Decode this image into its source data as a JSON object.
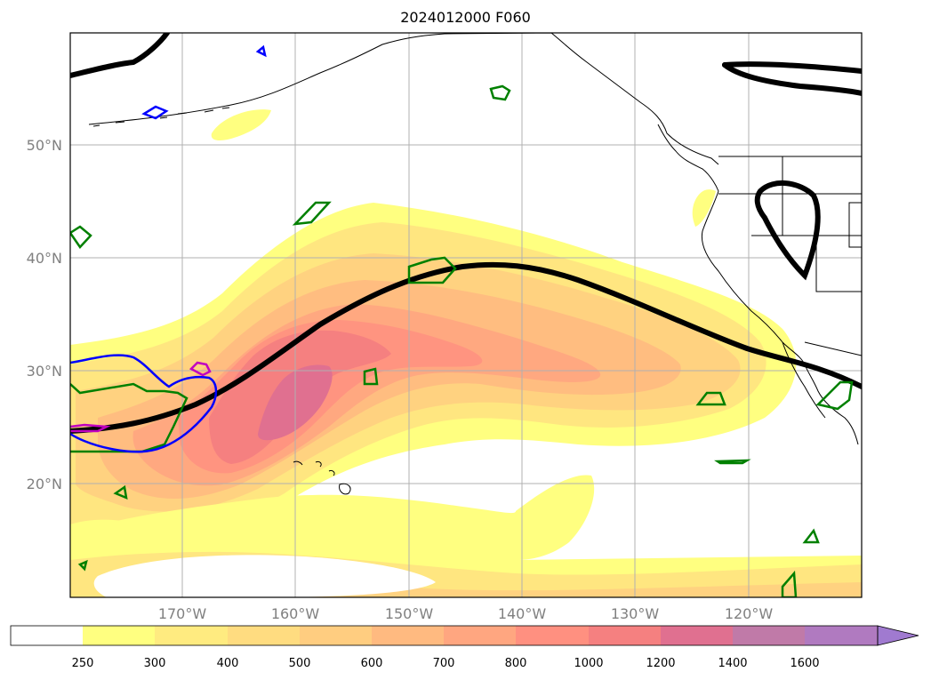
{
  "title": "2024012000 F060",
  "map": {
    "lat_ticks": [
      "50°N",
      "40°N",
      "30°N",
      "20°N"
    ],
    "lon_ticks": [
      "170°W",
      "160°W",
      "150°W",
      "140°W",
      "130°W",
      "120°W"
    ],
    "fill_colors": [
      "#ffff80",
      "#ffe680",
      "#ffd280",
      "#ffbd80",
      "#ffa880",
      "#ff9480",
      "#f58080",
      "#e07090",
      "#c080b0",
      "#a880d0"
    ],
    "jet_color": "#000000",
    "contour_green": "#008000",
    "contour_blue": "#0000ff",
    "contour_magenta": "#c000c0"
  },
  "colorbar": {
    "ticks": [
      "250",
      "300",
      "400",
      "500",
      "600",
      "700",
      "800",
      "1000",
      "1200",
      "1400",
      "1600"
    ],
    "colors": [
      "#ffffff",
      "#ffff80",
      "#ffeb80",
      "#ffdc80",
      "#ffcd80",
      "#ffba80",
      "#ffa680",
      "#ff9080",
      "#f58080",
      "#e07090",
      "#c07aa8",
      "#b07ac0",
      "#a07ad0"
    ]
  }
}
